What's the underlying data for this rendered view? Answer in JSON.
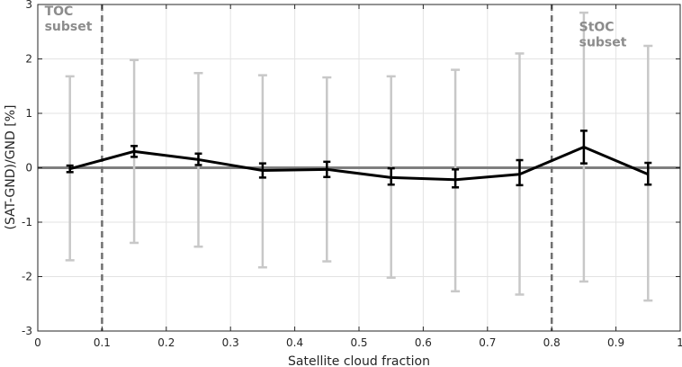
{
  "chart_data": {
    "type": "line",
    "title": "",
    "xlabel": "Satellite cloud fraction",
    "ylabel": "(SAT-GND)/GND [%]",
    "xlim": [
      0,
      1
    ],
    "ylim": [
      -3,
      3
    ],
    "grid": true,
    "xticks": [
      0,
      0.1,
      0.2,
      0.3,
      0.4,
      0.5,
      0.6,
      0.7,
      0.8,
      0.9,
      1
    ],
    "xtick_labels": [
      "0",
      "0.1",
      "0.2",
      "0.3",
      "0.4",
      "0.5",
      "0.6",
      "0.7",
      "0.8",
      "0.9",
      "1"
    ],
    "yticks": [
      -3,
      -2,
      -1,
      0,
      1,
      2,
      3
    ],
    "ytick_labels": [
      "-3",
      "-2",
      "-1",
      "0",
      "1",
      "2",
      "3"
    ],
    "x": [
      0.05,
      0.15,
      0.25,
      0.35,
      0.45,
      0.55,
      0.65,
      0.75,
      0.85,
      0.95
    ],
    "mean": {
      "values": [
        -0.02,
        0.3,
        0.15,
        -0.05,
        -0.03,
        -0.18,
        -0.22,
        -0.12,
        0.38,
        -0.12
      ],
      "err_low": [
        -0.08,
        0.2,
        0.05,
        -0.18,
        -0.17,
        -0.31,
        -0.36,
        -0.32,
        0.08,
        -0.31
      ],
      "err_high": [
        0.04,
        0.4,
        0.26,
        0.08,
        0.11,
        -0.01,
        -0.03,
        0.14,
        0.68,
        0.09
      ],
      "color": "#000000"
    },
    "spread": {
      "low": [
        -1.7,
        -1.38,
        -1.45,
        -1.83,
        -1.72,
        -2.02,
        -2.27,
        -2.33,
        -2.09,
        -2.44
      ],
      "high": [
        1.68,
        1.98,
        1.74,
        1.7,
        1.66,
        1.68,
        1.8,
        2.1,
        2.85,
        2.24
      ],
      "color": "#c8c8c8"
    },
    "zero_line": {
      "y": 0,
      "color": "#7f7f7f"
    },
    "subset_boundaries": [
      {
        "x": 0.1,
        "color": "#707070"
      },
      {
        "x": 0.8,
        "color": "#707070"
      }
    ],
    "annotations": [
      {
        "lines": [
          "TOC",
          "subset"
        ],
        "x": 0.005,
        "y": 2.87,
        "anchor": "start"
      },
      {
        "lines": [
          "StOC",
          "subset"
        ],
        "x": 0.837,
        "y": 2.58,
        "anchor": "start"
      }
    ]
  }
}
